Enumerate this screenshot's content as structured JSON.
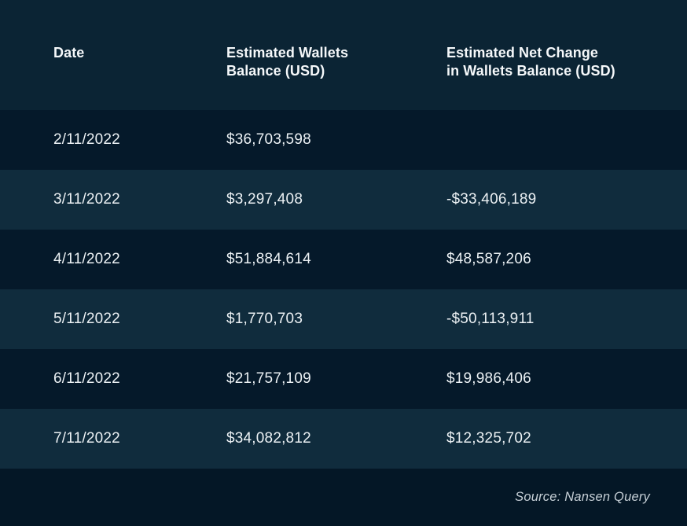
{
  "table": {
    "columns": [
      "Date",
      "Estimated Wallets\nBalance (USD)",
      "Estimated Net Change\nin Wallets Balance (USD)"
    ],
    "rows": [
      {
        "date": "2/11/2022",
        "balance": "$36,703,598",
        "net_change": ""
      },
      {
        "date": "3/11/2022",
        "balance": "$3,297,408",
        "net_change": "-$33,406,189"
      },
      {
        "date": "4/11/2022",
        "balance": "$51,884,614",
        "net_change": "$48,587,206"
      },
      {
        "date": "5/11/2022",
        "balance": "$1,770,703",
        "net_change": "-$50,113,911"
      },
      {
        "date": "6/11/2022",
        "balance": "$21,757,109",
        "net_change": "$19,986,406"
      },
      {
        "date": "7/11/2022",
        "balance": "$34,082,812",
        "net_change": "$12,325,702"
      }
    ],
    "source": "Source: Nansen Query"
  },
  "chart_data": {
    "type": "table",
    "title": "",
    "columns": [
      "Date",
      "Estimated Wallets Balance (USD)",
      "Estimated Net Change in Wallets Balance (USD)"
    ],
    "rows": [
      [
        "2/11/2022",
        36703598,
        null
      ],
      [
        "3/11/2022",
        3297408,
        -33406189
      ],
      [
        "4/11/2022",
        51884614,
        48587206
      ],
      [
        "5/11/2022",
        1770703,
        -50113911
      ],
      [
        "6/11/2022",
        21757109,
        19986406
      ],
      [
        "7/11/2022",
        34082812,
        12325702
      ]
    ],
    "source": "Source: Nansen Query"
  },
  "colors": {
    "header-bg": "#0B2434",
    "row-dark": "#05192A",
    "row-light": "#102C3D",
    "footer-bg": "#041726",
    "header-text": "#F5F8FA",
    "body-text": "#ECF1F4",
    "source-text": "#C7D0D7"
  }
}
